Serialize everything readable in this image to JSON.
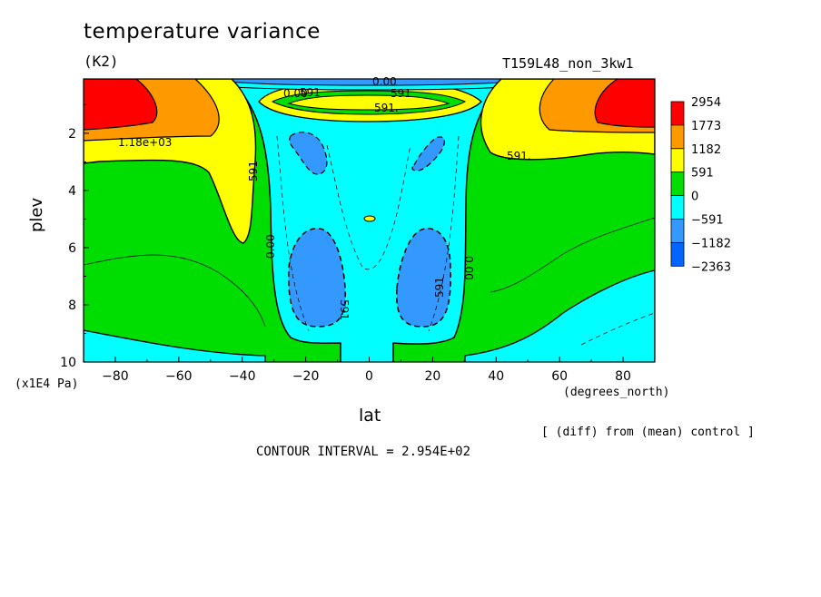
{
  "header": {
    "title": "temperature variance",
    "units": "(K2)",
    "run_name": "T159L48_non_3kw1"
  },
  "footer": {
    "diff_note": "[ (diff) from (mean) control ]",
    "contour_interval": "CONTOUR INTERVAL = 2.954E+02"
  },
  "chart_data": {
    "type": "heatmap",
    "title": "temperature variance",
    "xlabel": "lat",
    "ylabel": "plev",
    "x_units": "(degrees_north)",
    "y_units": "(x1E4 Pa)",
    "xlim": [
      -90,
      90
    ],
    "ylim": [
      10,
      0.1
    ],
    "y_inverted": true,
    "xticks": [
      -80,
      -60,
      -40,
      -20,
      0,
      20,
      40,
      60,
      80
    ],
    "yticks": [
      2,
      4,
      6,
      8,
      10
    ],
    "legend": {
      "placement": "right",
      "levels": [
        "2954",
        "1773",
        "1182",
        "591",
        "0",
        "−591",
        "−1182",
        "−2363"
      ],
      "colors": [
        "#ff0000",
        "#ff9900",
        "#ffff00",
        "#00dd00",
        "#00ffff",
        "#3399ff",
        "#0066ff"
      ]
    },
    "contour_labels": [
      "1.18e+03",
      "591",
      "591",
      "591.",
      "591.",
      "591",
      "591",
      "591",
      "0.00",
      "0.00",
      "0.00",
      "0.00"
    ]
  }
}
